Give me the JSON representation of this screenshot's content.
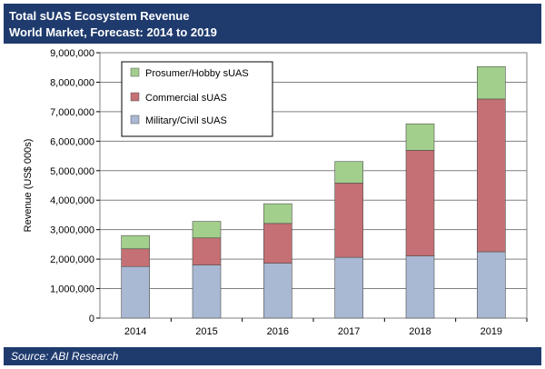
{
  "header": {
    "title": "Total sUAS Ecosystem Revenue",
    "subtitle": "World Market, Forecast: 2014 to 2019"
  },
  "footer": {
    "source": "Source: ABI Research"
  },
  "colors": {
    "header_bg": "#1f3b6e",
    "military": "#a9b8d3",
    "commercial": "#c57074",
    "prosumer": "#a3cf8c"
  },
  "chart_data": {
    "type": "bar",
    "stacked": true,
    "title": "Total sUAS Ecosystem Revenue",
    "subtitle": "World Market, Forecast: 2014 to 2019",
    "xlabel": "",
    "ylabel": "Revenue (US$ 000s)",
    "ylim": [
      0,
      9000000
    ],
    "yticks": [
      0,
      1000000,
      2000000,
      3000000,
      4000000,
      5000000,
      6000000,
      7000000,
      8000000,
      9000000
    ],
    "ytick_labels": [
      "0",
      "1,000,000",
      "2,000,000",
      "3,000,000",
      "4,000,000",
      "5,000,000",
      "6,000,000",
      "7,000,000",
      "8,000,000",
      "9,000,000"
    ],
    "categories": [
      "2014",
      "2015",
      "2016",
      "2017",
      "2018",
      "2019"
    ],
    "series": [
      {
        "name": "Military/Civil sUAS",
        "color": "#a9b8d3",
        "values": [
          1750000,
          1800000,
          1860000,
          2060000,
          2110000,
          2250000
        ]
      },
      {
        "name": "Commercial sUAS",
        "color": "#c57074",
        "values": [
          600000,
          920000,
          1350000,
          2520000,
          3580000,
          5180000
        ]
      },
      {
        "name": "Prosumer/Hobby sUAS",
        "color": "#a3cf8c",
        "values": [
          450000,
          560000,
          670000,
          730000,
          900000,
          1100000
        ]
      }
    ],
    "legend": {
      "placement": "top-left",
      "entries": [
        "Prosumer/Hobby sUAS",
        "Commercial sUAS",
        "Military/Civil sUAS"
      ]
    },
    "grid": true
  }
}
